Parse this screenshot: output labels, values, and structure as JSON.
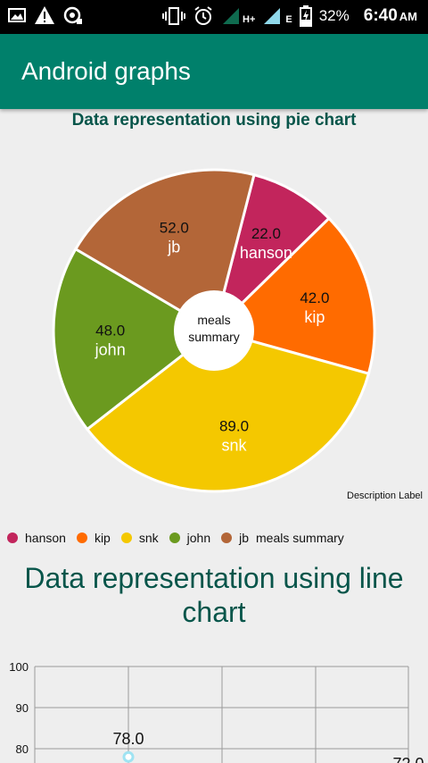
{
  "status_bar": {
    "battery": "32%",
    "time": "6:40",
    "ampm": "AM",
    "network": "H+",
    "network2": "E",
    "icons": [
      "image-icon",
      "warning-icon",
      "sync-icon",
      "vibrate-icon",
      "alarm-icon",
      "signal-icon",
      "signal-icon",
      "battery-charging-icon"
    ]
  },
  "app_bar": {
    "title": "Android graphs"
  },
  "pie_section": {
    "title": "Data representation using pie chart",
    "center_text": [
      "meals",
      "summary"
    ],
    "description_label": "Description Label",
    "legend_description": "meals summary"
  },
  "line_section": {
    "title": "Data representation using line chart"
  },
  "colors": {
    "primary": "#00806b",
    "title_text": "#07554a",
    "hanson": "#c2255c",
    "kip": "#ff6b00",
    "snk": "#f4c800",
    "john": "#6b9a1f",
    "jb": "#b36638",
    "line_point": "#9fe3f2"
  },
  "chart_data": [
    {
      "type": "pie",
      "title": "Data representation using pie chart",
      "slices": [
        {
          "label": "hanson",
          "value": 22.0,
          "value_text": "22.0",
          "color": "#c2255c"
        },
        {
          "label": "kip",
          "value": 42.0,
          "value_text": "42.0",
          "color": "#ff6b00"
        },
        {
          "label": "snk",
          "value": 89.0,
          "value_text": "89.0",
          "color": "#f4c800"
        },
        {
          "label": "john",
          "value": 48.0,
          "value_text": "48.0",
          "color": "#6b9a1f"
        },
        {
          "label": "jb",
          "value": 52.0,
          "value_text": "52.0",
          "color": "#b36638"
        }
      ],
      "legend": [
        "hanson",
        "kip",
        "snk",
        "john",
        "jb",
        "meals summary"
      ],
      "legend_placement": "bottom-left"
    },
    {
      "type": "line",
      "title": "Data representation using line chart",
      "y_ticks": [
        80,
        90,
        100
      ],
      "visible_points": [
        {
          "value": 78.0,
          "value_text": "78.0"
        },
        {
          "value": 72.0,
          "value_text": "72.0"
        }
      ],
      "grid": true
    }
  ]
}
